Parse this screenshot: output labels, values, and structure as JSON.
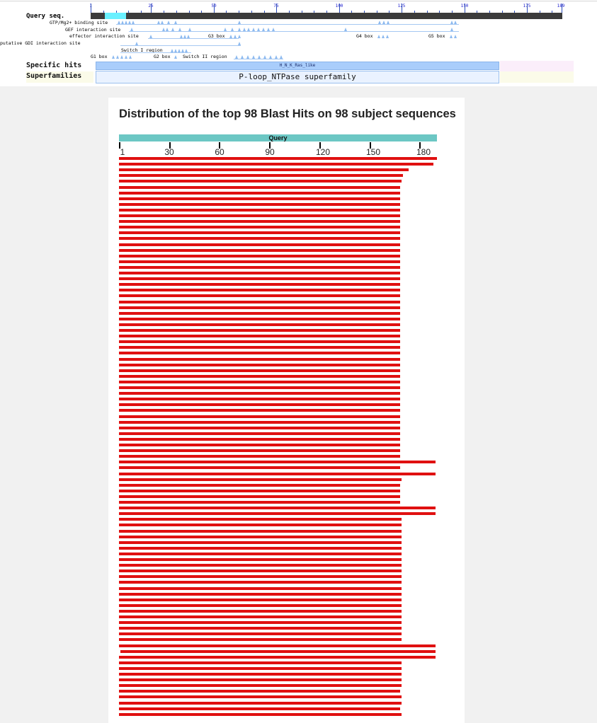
{
  "cdd": {
    "query_label": "Query seq.",
    "ruler_ticks": [
      "1",
      "25",
      "50",
      "75",
      "100",
      "125",
      "150",
      "175",
      "189"
    ],
    "features": [
      {
        "label": "GTP/Mg2+ binding site"
      },
      {
        "label": "GEF interaction site"
      },
      {
        "label": "effector interaction site",
        "boxes": [
          "G3 box",
          "G4 box",
          "G5 box"
        ]
      },
      {
        "label": "putative GDI interaction site"
      },
      {
        "label": "Switch I region"
      },
      {
        "label": "G1 box",
        "extra": [
          "G2 box",
          "Switch II region"
        ]
      }
    ],
    "specific_hits_label": "Specific hits",
    "specific_hit_name": "H_N_K_Ras_like",
    "superfamilies_label": "Superfamilies",
    "superfamily_name": "P-loop_NTPase superfamily"
  },
  "blast": {
    "title": "Distribution of the top 98 Blast Hits on 98 subject sequences",
    "query_label": "Query",
    "axis_ticks": [
      "1",
      "30",
      "60",
      "90",
      "120",
      "150",
      "180"
    ],
    "query_length": 189,
    "hit_color": "#e01010",
    "hits": [
      {
        "start": 1,
        "end": 189
      },
      {
        "start": 1,
        "end": 187
      },
      {
        "start": 1,
        "end": 172
      },
      {
        "start": 1,
        "end": 169
      },
      {
        "start": 1,
        "end": 168
      },
      {
        "start": 1,
        "end": 167
      },
      {
        "start": 1,
        "end": 167
      },
      {
        "start": 1,
        "end": 167
      },
      {
        "start": 1,
        "end": 167
      },
      {
        "start": 1,
        "end": 167
      },
      {
        "start": 1,
        "end": 167
      },
      {
        "start": 1,
        "end": 167
      },
      {
        "start": 1,
        "end": 167
      },
      {
        "start": 1,
        "end": 167
      },
      {
        "start": 1,
        "end": 167
      },
      {
        "start": 1,
        "end": 167
      },
      {
        "start": 1,
        "end": 167
      },
      {
        "start": 1,
        "end": 167
      },
      {
        "start": 1,
        "end": 167
      },
      {
        "start": 1,
        "end": 167
      },
      {
        "start": 1,
        "end": 167
      },
      {
        "start": 1,
        "end": 167
      },
      {
        "start": 1,
        "end": 167
      },
      {
        "start": 1,
        "end": 167
      },
      {
        "start": 1,
        "end": 167
      },
      {
        "start": 1,
        "end": 167
      },
      {
        "start": 1,
        "end": 167
      },
      {
        "start": 1,
        "end": 167
      },
      {
        "start": 1,
        "end": 167
      },
      {
        "start": 1,
        "end": 167
      },
      {
        "start": 1,
        "end": 167
      },
      {
        "start": 1,
        "end": 167
      },
      {
        "start": 1,
        "end": 167
      },
      {
        "start": 1,
        "end": 167
      },
      {
        "start": 1,
        "end": 167
      },
      {
        "start": 1,
        "end": 167
      },
      {
        "start": 1,
        "end": 167
      },
      {
        "start": 1,
        "end": 167
      },
      {
        "start": 1,
        "end": 167
      },
      {
        "start": 1,
        "end": 167
      },
      {
        "start": 1,
        "end": 167
      },
      {
        "start": 1,
        "end": 167
      },
      {
        "start": 1,
        "end": 167
      },
      {
        "start": 1,
        "end": 167
      },
      {
        "start": 1,
        "end": 167
      },
      {
        "start": 1,
        "end": 167
      },
      {
        "start": 1,
        "end": 167
      },
      {
        "start": 1,
        "end": 167
      },
      {
        "start": 1,
        "end": 167
      },
      {
        "start": 1,
        "end": 167
      },
      {
        "start": 1,
        "end": 167
      },
      {
        "start": 1,
        "end": 167
      },
      {
        "start": 1,
        "end": 167
      },
      {
        "start": 1,
        "end": 188
      },
      {
        "start": 1,
        "end": 167
      },
      {
        "start": 1,
        "end": 188
      },
      {
        "start": 1,
        "end": 168
      },
      {
        "start": 1,
        "end": 167
      },
      {
        "start": 1,
        "end": 167
      },
      {
        "start": 1,
        "end": 167
      },
      {
        "start": 1,
        "end": 167
      },
      {
        "start": 1,
        "end": 188
      },
      {
        "start": 1,
        "end": 188
      },
      {
        "start": 1,
        "end": 168
      },
      {
        "start": 1,
        "end": 168
      },
      {
        "start": 1,
        "end": 168
      },
      {
        "start": 1,
        "end": 168
      },
      {
        "start": 1,
        "end": 168
      },
      {
        "start": 1,
        "end": 168
      },
      {
        "start": 1,
        "end": 168
      },
      {
        "start": 1,
        "end": 168
      },
      {
        "start": 1,
        "end": 168
      },
      {
        "start": 1,
        "end": 168
      },
      {
        "start": 1,
        "end": 168
      },
      {
        "start": 1,
        "end": 168
      },
      {
        "start": 1,
        "end": 168
      },
      {
        "start": 1,
        "end": 168
      },
      {
        "start": 1,
        "end": 168
      },
      {
        "start": 1,
        "end": 168
      },
      {
        "start": 1,
        "end": 168
      },
      {
        "start": 1,
        "end": 168
      },
      {
        "start": 1,
        "end": 168
      },
      {
        "start": 1,
        "end": 168
      },
      {
        "start": 1,
        "end": 168
      },
      {
        "start": 1,
        "end": 168
      },
      {
        "start": 1,
        "end": 188
      },
      {
        "start": 2,
        "end": 188
      },
      {
        "start": 1,
        "end": 188
      },
      {
        "start": 1,
        "end": 168
      },
      {
        "start": 1,
        "end": 168
      },
      {
        "start": 1,
        "end": 168
      },
      {
        "start": 1,
        "end": 168
      },
      {
        "start": 1,
        "end": 168
      },
      {
        "start": 1,
        "end": 167
      },
      {
        "start": 1,
        "end": 168
      },
      {
        "start": 1,
        "end": 168
      },
      {
        "start": 1,
        "end": 167
      },
      {
        "start": 1,
        "end": 168
      }
    ]
  }
}
